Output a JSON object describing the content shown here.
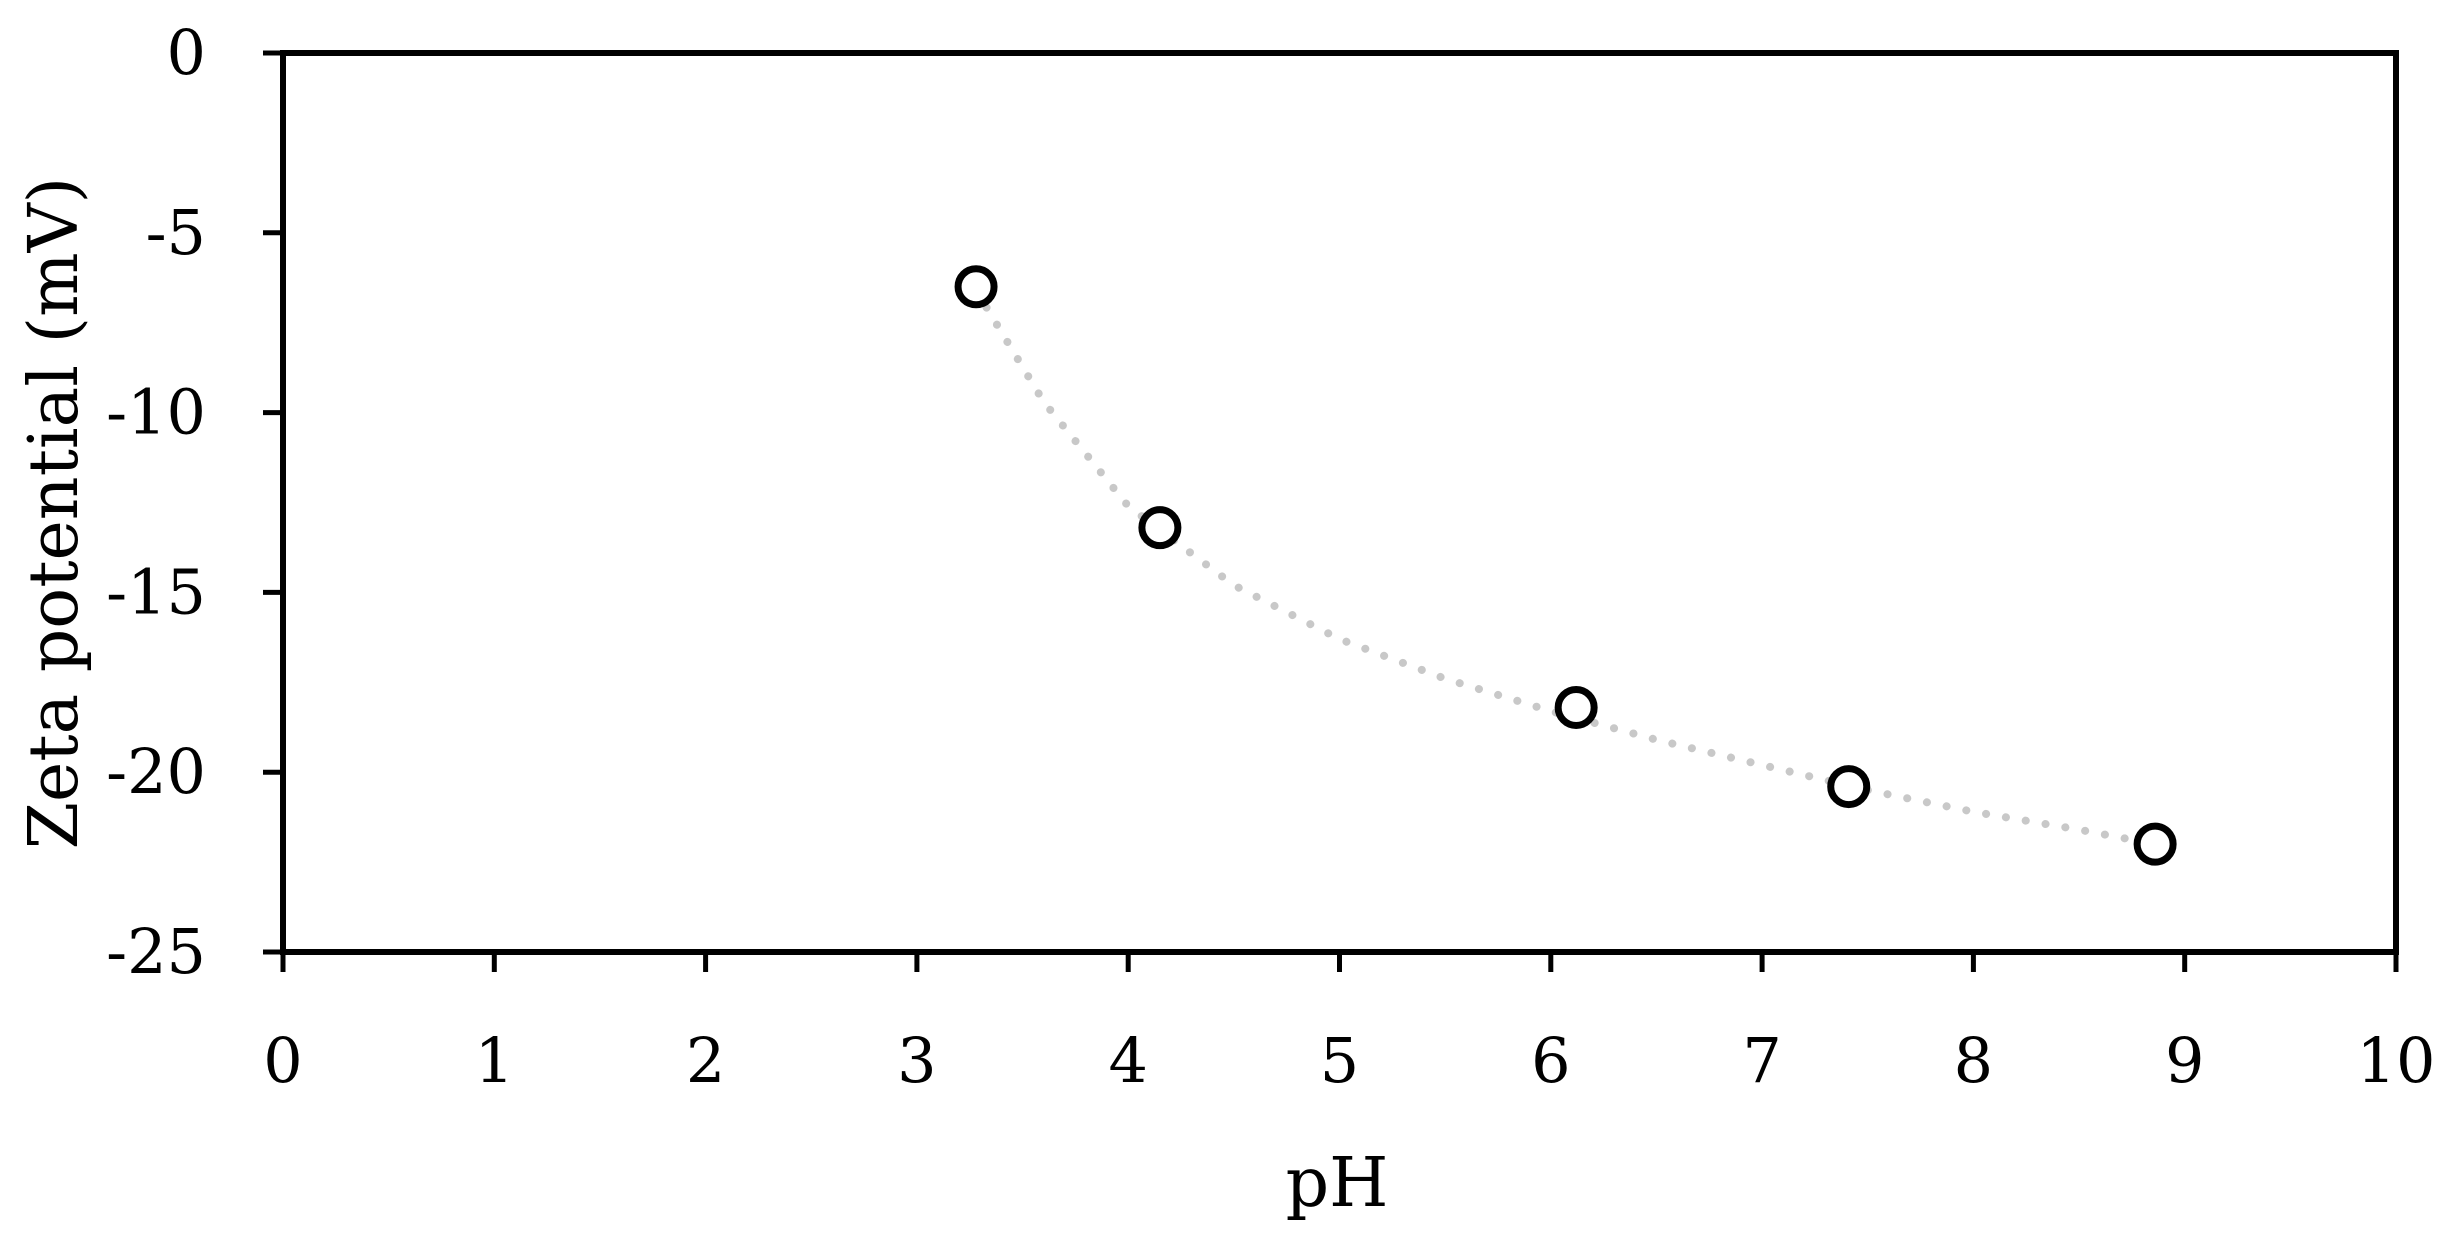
{
  "chart_data": {
    "type": "scatter",
    "title": "",
    "xlabel": "pH",
    "ylabel": "Zeta potential (mV)",
    "xlim": [
      0,
      10
    ],
    "ylim": [
      -25,
      0
    ],
    "x_ticks": [
      0,
      1,
      2,
      3,
      4,
      5,
      6,
      7,
      8,
      9,
      10
    ],
    "y_ticks": [
      0,
      -5,
      -10,
      -15,
      -20,
      -25
    ],
    "grid": false,
    "legend": "none",
    "series": [
      {
        "marker": "open-circle",
        "color": "#000000",
        "x": [
          3.28,
          4.15,
          6.12,
          7.41,
          8.86
        ],
        "y": [
          -6.5,
          -13.2,
          -18.2,
          -20.4,
          -22.0
        ]
      }
    ],
    "trendline": {
      "style": "dotted",
      "color": "#c8c8c8",
      "x": [
        3.28,
        3.6,
        4.0,
        4.5,
        5.0,
        5.5,
        6.0,
        6.5,
        7.0,
        7.5,
        8.0,
        8.5,
        8.86
      ],
      "y": [
        -6.6,
        -9.7,
        -12.6,
        -14.8,
        -16.3,
        -17.4,
        -18.3,
        -19.1,
        -19.8,
        -20.5,
        -21.1,
        -21.6,
        -22.0
      ]
    }
  }
}
